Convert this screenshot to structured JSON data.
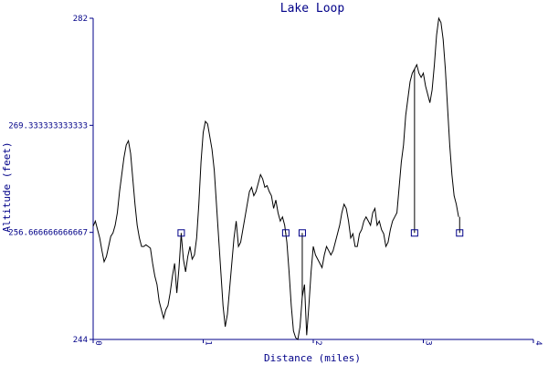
{
  "chart_data": {
    "type": "line",
    "title": "Lake Loop",
    "xlabel": "Distance (miles)",
    "ylabel": "Altitude (feet)",
    "xlim": [
      0,
      4
    ],
    "ylim": [
      244,
      282
    ],
    "x_ticks": [
      {
        "value": 0,
        "label": "0"
      },
      {
        "value": 1,
        "label": "1"
      },
      {
        "value": 2,
        "label": "2"
      },
      {
        "value": 3,
        "label": "3"
      },
      {
        "value": 4,
        "label": "4"
      }
    ],
    "y_ticks": [
      {
        "value": 244,
        "label": "244"
      },
      {
        "value": 256.666666666667,
        "label": "256.666666666667"
      },
      {
        "value": 269.333333333333,
        "label": "269.333333333333"
      },
      {
        "value": 282,
        "label": "282"
      }
    ],
    "grid": false,
    "series": [
      {
        "points": [
          [
            0.0,
            257.4
          ],
          [
            0.02,
            258.0
          ],
          [
            0.04,
            257.0
          ],
          [
            0.06,
            256.0
          ],
          [
            0.08,
            254.5
          ],
          [
            0.1,
            253.2
          ],
          [
            0.12,
            253.8
          ],
          [
            0.14,
            255.0
          ],
          [
            0.16,
            256.2
          ],
          [
            0.18,
            256.6
          ],
          [
            0.2,
            257.5
          ],
          [
            0.22,
            259.0
          ],
          [
            0.24,
            261.5
          ],
          [
            0.26,
            263.5
          ],
          [
            0.28,
            265.5
          ],
          [
            0.3,
            267.0
          ],
          [
            0.32,
            267.5
          ],
          [
            0.34,
            266.0
          ],
          [
            0.36,
            263.0
          ],
          [
            0.38,
            260.0
          ],
          [
            0.4,
            257.5
          ],
          [
            0.42,
            256.0
          ],
          [
            0.44,
            255.0
          ],
          [
            0.46,
            255.0
          ],
          [
            0.48,
            255.2
          ],
          [
            0.5,
            255.0
          ],
          [
            0.52,
            254.8
          ],
          [
            0.54,
            253.0
          ],
          [
            0.56,
            251.5
          ],
          [
            0.58,
            250.5
          ],
          [
            0.6,
            248.5
          ],
          [
            0.62,
            247.5
          ],
          [
            0.64,
            246.5
          ],
          [
            0.66,
            247.5
          ],
          [
            0.68,
            248.0
          ],
          [
            0.7,
            249.5
          ],
          [
            0.72,
            251.5
          ],
          [
            0.74,
            253.0
          ],
          [
            0.76,
            249.5
          ],
          [
            0.78,
            252.5
          ],
          [
            0.8,
            256.5
          ],
          [
            0.82,
            253.5
          ],
          [
            0.84,
            252.0
          ],
          [
            0.86,
            253.8
          ],
          [
            0.88,
            255.0
          ],
          [
            0.9,
            253.5
          ],
          [
            0.92,
            254.0
          ],
          [
            0.94,
            256.0
          ],
          [
            0.96,
            260.0
          ],
          [
            0.98,
            265.0
          ],
          [
            1.0,
            268.5
          ],
          [
            1.02,
            269.8
          ],
          [
            1.04,
            269.5
          ],
          [
            1.06,
            268.0
          ],
          [
            1.08,
            266.5
          ],
          [
            1.1,
            264.0
          ],
          [
            1.12,
            260.0
          ],
          [
            1.14,
            256.0
          ],
          [
            1.16,
            252.0
          ],
          [
            1.18,
            248.0
          ],
          [
            1.2,
            245.5
          ],
          [
            1.22,
            247.0
          ],
          [
            1.24,
            250.0
          ],
          [
            1.26,
            253.0
          ],
          [
            1.28,
            256.0
          ],
          [
            1.3,
            258.0
          ],
          [
            1.32,
            255.0
          ],
          [
            1.34,
            255.5
          ],
          [
            1.36,
            257.0
          ],
          [
            1.38,
            258.5
          ],
          [
            1.4,
            260.0
          ],
          [
            1.42,
            261.5
          ],
          [
            1.44,
            262.0
          ],
          [
            1.46,
            261.0
          ],
          [
            1.48,
            261.5
          ],
          [
            1.5,
            262.5
          ],
          [
            1.52,
            263.5
          ],
          [
            1.54,
            263.0
          ],
          [
            1.56,
            262.0
          ],
          [
            1.58,
            262.2
          ],
          [
            1.6,
            261.5
          ],
          [
            1.62,
            261.0
          ],
          [
            1.64,
            259.5
          ],
          [
            1.66,
            260.5
          ],
          [
            1.68,
            259.0
          ],
          [
            1.7,
            258.0
          ],
          [
            1.72,
            258.5
          ],
          [
            1.74,
            257.5
          ],
          [
            1.76,
            255.5
          ],
          [
            1.78,
            252.0
          ],
          [
            1.8,
            248.0
          ],
          [
            1.82,
            245.0
          ],
          [
            1.84,
            244.2
          ],
          [
            1.86,
            244.0
          ],
          [
            1.88,
            245.5
          ],
          [
            1.9,
            249.0
          ],
          [
            1.92,
            250.5
          ],
          [
            1.94,
            244.5
          ],
          [
            1.96,
            248.0
          ],
          [
            1.98,
            252.0
          ],
          [
            2.0,
            255.0
          ],
          [
            2.02,
            254.0
          ],
          [
            2.04,
            253.5
          ],
          [
            2.06,
            253.0
          ],
          [
            2.08,
            252.5
          ],
          [
            2.1,
            254.0
          ],
          [
            2.12,
            255.0
          ],
          [
            2.14,
            254.5
          ],
          [
            2.16,
            254.0
          ],
          [
            2.18,
            254.5
          ],
          [
            2.2,
            255.5
          ],
          [
            2.22,
            256.5
          ],
          [
            2.24,
            257.5
          ],
          [
            2.26,
            259.0
          ],
          [
            2.28,
            260.0
          ],
          [
            2.3,
            259.5
          ],
          [
            2.32,
            258.0
          ],
          [
            2.34,
            256.0
          ],
          [
            2.36,
            256.5
          ],
          [
            2.38,
            255.0
          ],
          [
            2.4,
            255.0
          ],
          [
            2.42,
            256.5
          ],
          [
            2.44,
            257.0
          ],
          [
            2.46,
            258.0
          ],
          [
            2.48,
            258.5
          ],
          [
            2.5,
            258.0
          ],
          [
            2.52,
            257.5
          ],
          [
            2.54,
            259.0
          ],
          [
            2.56,
            259.5
          ],
          [
            2.58,
            257.5
          ],
          [
            2.6,
            258.0
          ],
          [
            2.62,
            257.0
          ],
          [
            2.64,
            256.5
          ],
          [
            2.66,
            255.0
          ],
          [
            2.68,
            255.5
          ],
          [
            2.7,
            257.0
          ],
          [
            2.72,
            258.0
          ],
          [
            2.74,
            258.5
          ],
          [
            2.76,
            259.0
          ],
          [
            2.78,
            262.0
          ],
          [
            2.8,
            265.0
          ],
          [
            2.82,
            267.0
          ],
          [
            2.84,
            270.5
          ],
          [
            2.86,
            272.5
          ],
          [
            2.88,
            274.5
          ],
          [
            2.9,
            275.5
          ],
          [
            2.92,
            276.0
          ],
          [
            2.94,
            276.5
          ],
          [
            2.96,
            275.5
          ],
          [
            2.98,
            275.0
          ],
          [
            3.0,
            275.5
          ],
          [
            3.02,
            274.0
          ],
          [
            3.04,
            273.0
          ],
          [
            3.06,
            272.0
          ],
          [
            3.08,
            273.5
          ],
          [
            3.1,
            276.5
          ],
          [
            3.12,
            280.0
          ],
          [
            3.14,
            282.0
          ],
          [
            3.16,
            281.5
          ],
          [
            3.18,
            279.5
          ],
          [
            3.2,
            276.0
          ],
          [
            3.22,
            271.5
          ],
          [
            3.24,
            267.0
          ],
          [
            3.26,
            263.5
          ],
          [
            3.28,
            261.0
          ],
          [
            3.3,
            260.0
          ],
          [
            3.32,
            258.5
          ]
        ]
      }
    ],
    "markers": [
      {
        "x": 0.8,
        "y": 256.6
      },
      {
        "x": 1.75,
        "y": 256.6
      },
      {
        "x": 1.9,
        "y": 256.6
      },
      {
        "x": 2.92,
        "y": 256.6
      },
      {
        "x": 3.33,
        "y": 256.6
      }
    ]
  }
}
